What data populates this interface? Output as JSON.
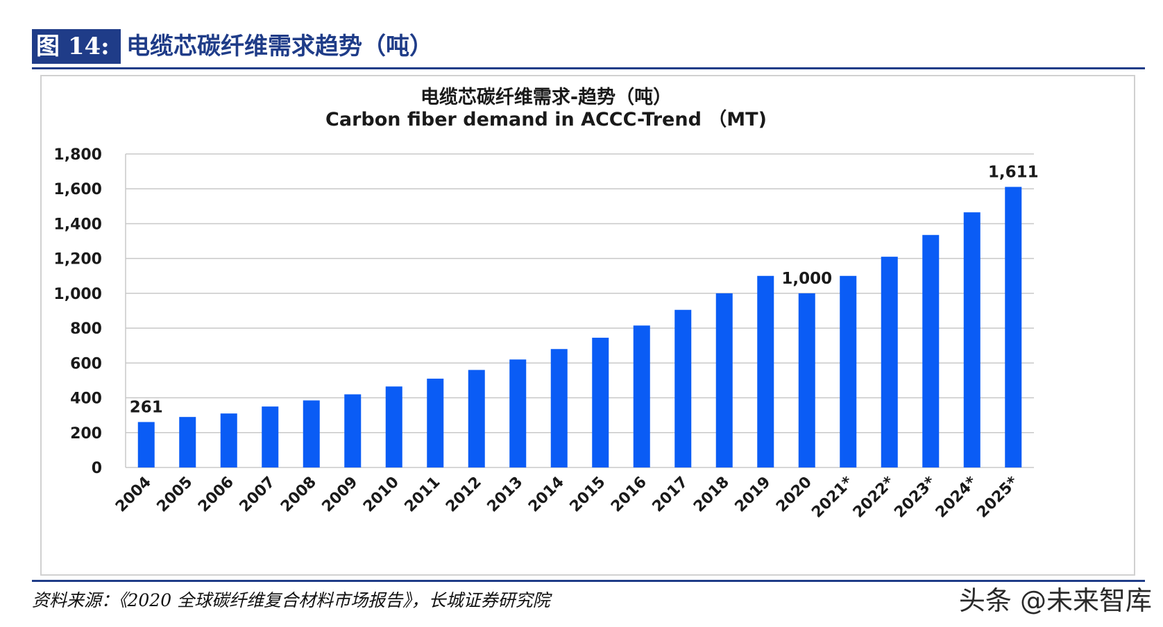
{
  "figure": {
    "label": "图 14:",
    "title": "电缆芯碳纤维需求趋势（吨）"
  },
  "colors": {
    "accent": "#1f3c88",
    "bar": "#0a5cf5"
  },
  "chart_data": {
    "type": "bar",
    "title": "电缆芯碳纤维需求-趋势（吨）",
    "subtitle": "Carbon fiber demand in ACCC-Trend （MT)",
    "xlabel": "",
    "ylabel": "",
    "ylim": [
      0,
      1800
    ],
    "yticks": [
      0,
      200,
      400,
      600,
      800,
      1000,
      1200,
      1400,
      1600,
      1800
    ],
    "ytick_labels": [
      "0",
      "200",
      "400",
      "600",
      "800",
      "1,000",
      "1,200",
      "1,400",
      "1,600",
      "1,800"
    ],
    "grid": true,
    "categories": [
      "2004",
      "2005",
      "2006",
      "2007",
      "2008",
      "2009",
      "2010",
      "2011",
      "2012",
      "2013",
      "2014",
      "2015",
      "2016",
      "2017",
      "2018",
      "2019",
      "2020",
      "2021*",
      "2022*",
      "2023*",
      "2024*",
      "2025*"
    ],
    "values": [
      261,
      290,
      310,
      350,
      385,
      420,
      465,
      510,
      560,
      620,
      680,
      745,
      815,
      905,
      1000,
      1100,
      1000,
      1100,
      1210,
      1335,
      1465,
      1611
    ],
    "data_labels": [
      {
        "index": 0,
        "text": "261"
      },
      {
        "index": 16,
        "text": "1,000"
      },
      {
        "index": 21,
        "text": "1,611"
      }
    ]
  },
  "source": "资料来源：《2020 全球碳纤维复合材料市场报告》，长城证券研究院",
  "watermark": "头条 @未来智库"
}
